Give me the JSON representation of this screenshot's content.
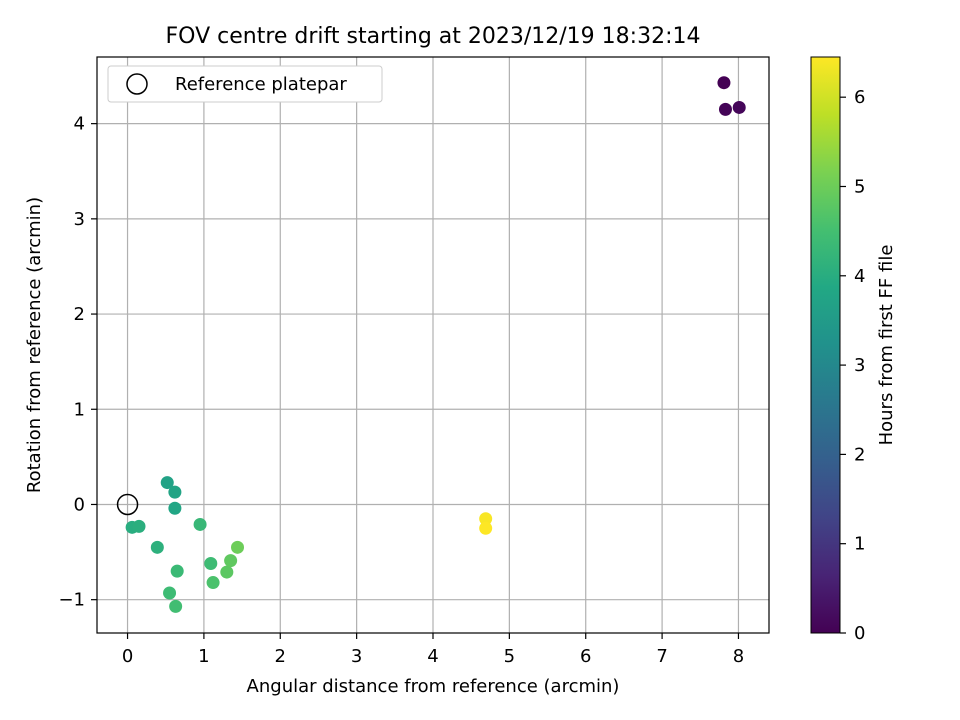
{
  "chart_data": {
    "type": "scatter",
    "title": "FOV centre drift starting at 2023/12/19 18:32:14",
    "xlabel": "Angular distance from reference (arcmin)",
    "ylabel": "Rotation from reference (arcmin)",
    "xlim": [
      -0.4,
      8.4
    ],
    "ylim": [
      -1.35,
      4.7
    ],
    "xticks": [
      0,
      1,
      2,
      3,
      4,
      5,
      6,
      7,
      8
    ],
    "yticks": [
      -1,
      0,
      1,
      2,
      3,
      4
    ],
    "grid": true,
    "legend": {
      "placement": "top-left",
      "entries": [
        "Reference platepar"
      ]
    },
    "reference_point": {
      "x": 0,
      "y": 0,
      "label": "Reference platepar"
    },
    "colorbar": {
      "label": "Hours from first FF file",
      "range": [
        0,
        6.45
      ],
      "ticks": [
        0,
        1,
        2,
        3,
        4,
        5,
        6
      ],
      "colormap": "viridis"
    },
    "points": [
      {
        "x": 7.81,
        "y": 4.43,
        "hours": 0.0
      },
      {
        "x": 7.83,
        "y": 4.15,
        "hours": 0.05
      },
      {
        "x": 8.01,
        "y": 4.17,
        "hours": 0.1
      },
      {
        "x": 0.52,
        "y": 0.23,
        "hours": 3.7
      },
      {
        "x": 0.62,
        "y": 0.13,
        "hours": 3.75
      },
      {
        "x": 0.62,
        "y": -0.04,
        "hours": 3.8
      },
      {
        "x": 0.06,
        "y": -0.24,
        "hours": 4.0
      },
      {
        "x": 0.15,
        "y": -0.23,
        "hours": 4.05
      },
      {
        "x": 0.39,
        "y": -0.45,
        "hours": 4.1
      },
      {
        "x": 0.95,
        "y": -0.21,
        "hours": 4.3
      },
      {
        "x": 0.65,
        "y": -0.7,
        "hours": 4.35
      },
      {
        "x": 1.09,
        "y": -0.62,
        "hours": 4.4
      },
      {
        "x": 1.12,
        "y": -0.82,
        "hours": 4.6
      },
      {
        "x": 0.55,
        "y": -0.93,
        "hours": 4.4
      },
      {
        "x": 0.63,
        "y": -1.07,
        "hours": 4.45
      },
      {
        "x": 1.3,
        "y": -0.71,
        "hours": 4.8
      },
      {
        "x": 1.35,
        "y": -0.59,
        "hours": 4.85
      },
      {
        "x": 1.44,
        "y": -0.45,
        "hours": 5.0
      },
      {
        "x": 4.69,
        "y": -0.15,
        "hours": 6.4
      },
      {
        "x": 4.69,
        "y": -0.25,
        "hours": 6.45
      }
    ]
  }
}
